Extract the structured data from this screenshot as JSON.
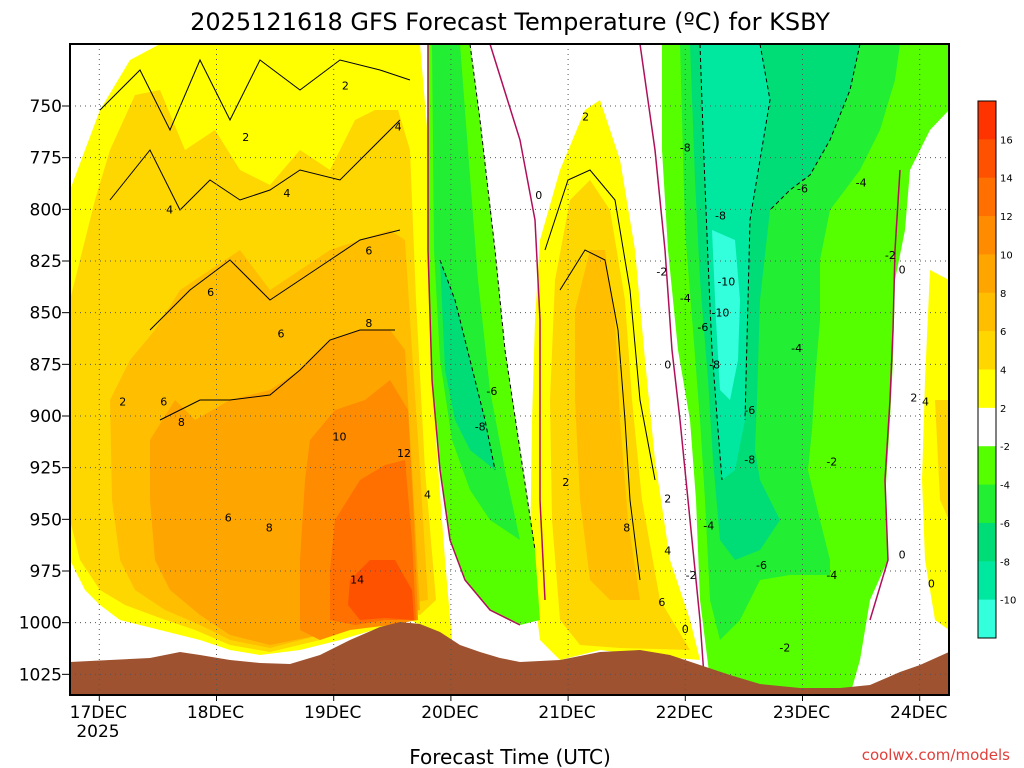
{
  "chart_data": {
    "type": "heatmap",
    "title": "2025121618 GFS Forecast Temperature (ºC) for KSBY",
    "xlabel": "Forecast Time (UTC)",
    "ylabel": "",
    "credit": "coolwx.com/models",
    "x_ticks": [
      "17DEC",
      "18DEC",
      "19DEC",
      "20DEC",
      "21DEC",
      "22DEC",
      "23DEC",
      "24DEC"
    ],
    "x_sub": "2025",
    "x_range_days": [
      16.75,
      24.25
    ],
    "y_ticks": [
      750,
      775,
      800,
      825,
      850,
      875,
      900,
      925,
      950,
      975,
      1000,
      1025
    ],
    "ylim_hpa": [
      720,
      1035
    ],
    "colorbar": {
      "labels": [
        "16",
        "14",
        "12",
        "10",
        "8",
        "6",
        "4",
        "2",
        "-2",
        "-4",
        "-6",
        "-8",
        "-10"
      ],
      "bins": [
        {
          "from": 16,
          "to": 18,
          "color": "#ff3300"
        },
        {
          "from": 14,
          "to": 16,
          "color": "#ff5200"
        },
        {
          "from": 12,
          "to": 14,
          "color": "#ff7000"
        },
        {
          "from": 10,
          "to": 12,
          "color": "#ff8b00"
        },
        {
          "from": 8,
          "to": 10,
          "color": "#ffa500"
        },
        {
          "from": 6,
          "to": 8,
          "color": "#ffbf00"
        },
        {
          "from": 4,
          "to": 6,
          "color": "#ffd700"
        },
        {
          "from": 2,
          "to": 4,
          "color": "#ffff00"
        },
        {
          "from": -2,
          "to": 2,
          "color": "#ffffff"
        },
        {
          "from": -4,
          "to": -2,
          "color": "#55ff00"
        },
        {
          "from": -6,
          "to": -4,
          "color": "#22ee33"
        },
        {
          "from": -8,
          "to": -6,
          "color": "#00dd77"
        },
        {
          "from": -10,
          "to": -8,
          "color": "#00e8a0"
        },
        {
          "from": -12,
          "to": -10,
          "color": "#33ffdd"
        }
      ]
    },
    "series": [
      {
        "name": "Temperature (ºC)",
        "at_hpa": 750,
        "points": [
          [
            17.0,
            3
          ],
          [
            17.5,
            3
          ],
          [
            18.0,
            3
          ],
          [
            18.5,
            3
          ],
          [
            19.0,
            3
          ],
          [
            19.6,
            3
          ],
          [
            20.0,
            -6
          ],
          [
            20.4,
            -4
          ],
          [
            20.9,
            0
          ],
          [
            21.3,
            1
          ],
          [
            21.8,
            0
          ],
          [
            22.2,
            -8
          ],
          [
            22.6,
            -6
          ],
          [
            23.0,
            -5
          ],
          [
            23.5,
            -4
          ],
          [
            24.0,
            -3
          ]
        ]
      },
      {
        "name": "Temperature (ºC)",
        "at_hpa": 850,
        "points": [
          [
            17.0,
            4
          ],
          [
            17.5,
            5
          ],
          [
            18.0,
            6
          ],
          [
            18.5,
            6
          ],
          [
            19.0,
            7
          ],
          [
            19.6,
            9
          ],
          [
            20.0,
            -3
          ],
          [
            20.3,
            -6
          ],
          [
            20.7,
            -2
          ],
          [
            21.2,
            7
          ],
          [
            21.6,
            4
          ],
          [
            22.0,
            -2
          ],
          [
            22.4,
            -10
          ],
          [
            22.8,
            -6
          ],
          [
            23.3,
            -4
          ],
          [
            24.0,
            2
          ]
        ]
      },
      {
        "name": "Temperature (ºC)",
        "at_hpa": 950,
        "points": [
          [
            17.0,
            1
          ],
          [
            17.5,
            6
          ],
          [
            18.0,
            9
          ],
          [
            18.5,
            8
          ],
          [
            19.0,
            10
          ],
          [
            19.6,
            13
          ],
          [
            20.0,
            0
          ],
          [
            20.3,
            -4
          ],
          [
            20.7,
            0
          ],
          [
            21.2,
            8
          ],
          [
            21.6,
            7
          ],
          [
            22.0,
            2
          ],
          [
            22.4,
            -6
          ],
          [
            22.8,
            -5
          ],
          [
            23.3,
            -3
          ],
          [
            24.0,
            2
          ]
        ]
      }
    ],
    "contour_labels": [
      "2",
      "4",
      "6",
      "8",
      "10",
      "12",
      "14",
      "0",
      "-2",
      "-4",
      "-6",
      "-8",
      "-10"
    ]
  },
  "ui": {
    "surface_label": "terrain (surface pressure)"
  }
}
